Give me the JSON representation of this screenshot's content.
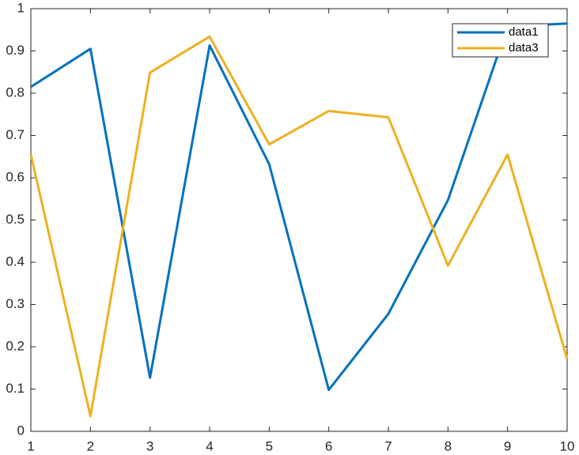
{
  "chart_data": {
    "type": "line",
    "x": [
      1,
      2,
      3,
      4,
      5,
      6,
      7,
      8,
      9,
      10
    ],
    "series": [
      {
        "name": "data1",
        "color": "#0072bd",
        "values": [
          0.815,
          0.905,
          0.127,
          0.913,
          0.632,
          0.098,
          0.278,
          0.547,
          0.958,
          0.965
        ]
      },
      {
        "name": "data3",
        "color": "#edb120",
        "values": [
          0.655,
          0.036,
          0.849,
          0.934,
          0.679,
          0.758,
          0.743,
          0.392,
          0.655,
          0.171
        ]
      }
    ],
    "xlim": [
      1,
      10
    ],
    "xticks": [
      1,
      2,
      3,
      4,
      5,
      6,
      7,
      8,
      9,
      10
    ],
    "ylim": [
      0,
      1
    ],
    "yticks": [
      0,
      0.1,
      0.2,
      0.3,
      0.4,
      0.5,
      0.6,
      0.7,
      0.8,
      0.9,
      1
    ],
    "grid": false,
    "legend": "northeast"
  }
}
